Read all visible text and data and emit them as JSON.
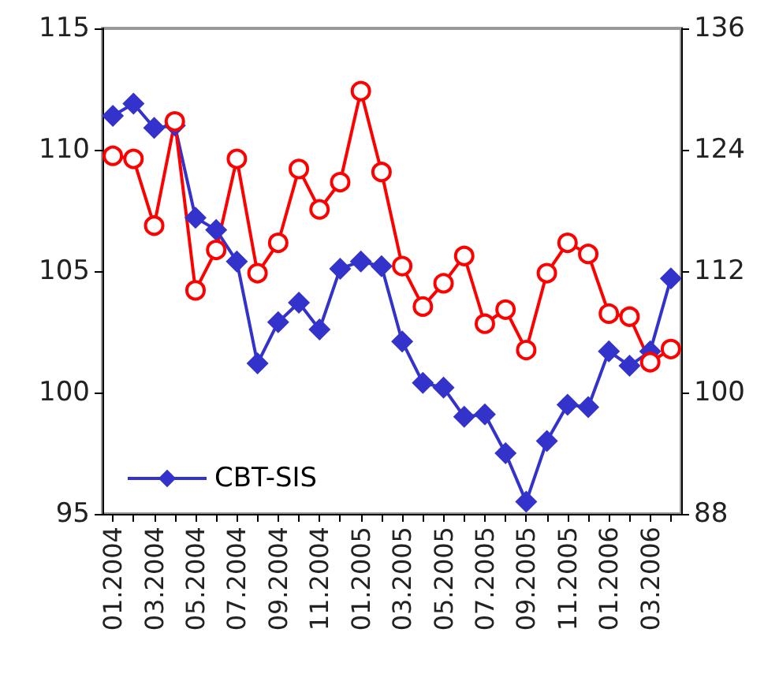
{
  "chart_data": {
    "type": "line",
    "categories": [
      "01.2004",
      null,
      "03.2004",
      null,
      "05.2004",
      null,
      "07.2004",
      null,
      "09.2004",
      null,
      "11.2004",
      null,
      "01.2005",
      null,
      "03.2005",
      null,
      "05.2005",
      null,
      "07.2005",
      null,
      "09.2005",
      null,
      "11.2005",
      null,
      "01.2006",
      null,
      "03.2006",
      null
    ],
    "series": [
      {
        "name": "CBT-SIS",
        "color": "#3333cc",
        "marker": "diamond",
        "values": [
          111.4,
          111.9,
          110.9,
          111.0,
          107.2,
          106.7,
          105.4,
          101.2,
          102.9,
          103.7,
          102.6,
          105.1,
          105.4,
          105.2,
          102.1,
          100.4,
          100.2,
          99.0,
          99.1,
          97.5,
          95.5,
          98.0,
          99.5,
          99.4,
          101.7,
          101.1,
          101.7,
          104.7
        ]
      },
      {
        "color": "#ff0000",
        "marker": "circle",
        "axis": "y2",
        "values": [
          123.4,
          123.1,
          116.5,
          126.8,
          110.1,
          114.1,
          123.1,
          111.8,
          114.8,
          122.1,
          118.1,
          120.8,
          129.8,
          121.8,
          112.5,
          108.5,
          110.8,
          113.5,
          106.8,
          108.2,
          104.2,
          111.8,
          114.8,
          113.7,
          107.8,
          107.5,
          103.0,
          104.3
        ]
      }
    ],
    "ylim": [
      95,
      115
    ],
    "yticks": [
      95,
      100,
      105,
      110,
      115
    ],
    "y2lim": [
      88,
      136
    ],
    "y2ticks": [
      88,
      100,
      112,
      124,
      136
    ],
    "legend": "bottom left",
    "grid": false
  }
}
